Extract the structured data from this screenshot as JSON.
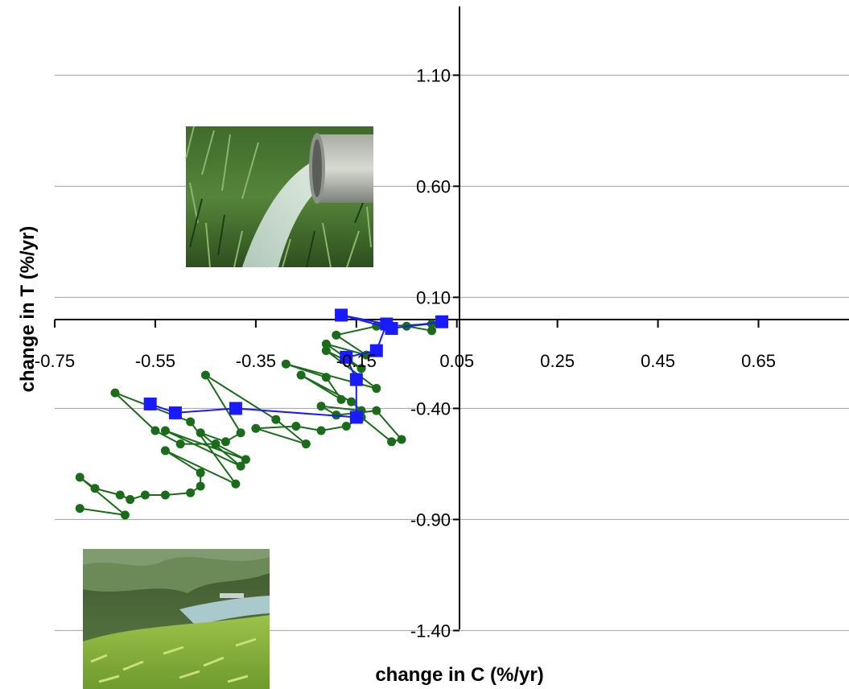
{
  "chart_data": {
    "type": "line",
    "title": "",
    "xlabel": "change in C (%/yr)",
    "ylabel": "change in T (%/yr)",
    "xlim": [
      -0.75,
      0.75
    ],
    "ylim": [
      -1.4,
      1.4
    ],
    "x_ticks": [
      "-0.75",
      "-0.55",
      "-0.35",
      "-0.15",
      "0.05",
      "0.25",
      "0.45",
      "0.65"
    ],
    "y_ticks": [
      "1.10",
      "0.60",
      "0.10",
      "-0.40",
      "-0.90",
      "-1.40"
    ],
    "y_tick_values": [
      1.1,
      0.6,
      0.1,
      -0.4,
      -0.9,
      -1.4
    ],
    "gridlines": "horizontal",
    "series": [
      {
        "color": "#1a6b1a",
        "marker": "circle",
        "points": [
          [
            0.0,
            -0.05
          ],
          [
            -0.05,
            -0.03
          ],
          [
            0.0,
            -0.02
          ],
          [
            -0.09,
            -0.03
          ],
          [
            -0.11,
            -0.03
          ],
          [
            -0.19,
            -0.07
          ],
          [
            -0.13,
            -0.16
          ],
          [
            -0.21,
            -0.11
          ],
          [
            -0.14,
            -0.22
          ],
          [
            -0.21,
            -0.14
          ],
          [
            -0.11,
            -0.31
          ],
          [
            -0.29,
            -0.2
          ],
          [
            -0.21,
            -0.26
          ],
          [
            -0.18,
            -0.36
          ],
          [
            -0.26,
            -0.25
          ],
          [
            -0.16,
            -0.37
          ],
          [
            -0.14,
            -0.41
          ],
          [
            -0.22,
            -0.39
          ],
          [
            -0.19,
            -0.43
          ],
          [
            -0.11,
            -0.41
          ],
          [
            -0.06,
            -0.54
          ],
          [
            -0.08,
            -0.55
          ],
          [
            -0.14,
            -0.44
          ],
          [
            -0.17,
            -0.48
          ],
          [
            -0.22,
            -0.5
          ],
          [
            -0.27,
            -0.48
          ],
          [
            -0.35,
            -0.49
          ],
          [
            -0.25,
            -0.56
          ],
          [
            -0.31,
            -0.45
          ],
          [
            -0.45,
            -0.25
          ],
          [
            -0.38,
            -0.51
          ],
          [
            -0.41,
            -0.55
          ],
          [
            -0.46,
            -0.51
          ],
          [
            -0.38,
            -0.66
          ],
          [
            -0.53,
            -0.5
          ],
          [
            -0.37,
            -0.63
          ],
          [
            -0.43,
            -0.56
          ],
          [
            -0.5,
            -0.56
          ],
          [
            -0.55,
            -0.5
          ],
          [
            -0.63,
            -0.33
          ],
          [
            -0.48,
            -0.46
          ],
          [
            -0.39,
            -0.74
          ],
          [
            -0.53,
            -0.59
          ],
          [
            -0.46,
            -0.69
          ],
          [
            -0.46,
            -0.75
          ],
          [
            -0.48,
            -0.78
          ],
          [
            -0.53,
            -0.79
          ],
          [
            -0.57,
            -0.79
          ],
          [
            -0.6,
            -0.81
          ],
          [
            -0.62,
            -0.79
          ],
          [
            -0.67,
            -0.76
          ],
          [
            -0.7,
            -0.71
          ],
          [
            -0.61,
            -0.88
          ],
          [
            -0.7,
            -0.85
          ]
        ]
      },
      {
        "color": "#1a1aff",
        "marker": "square",
        "points": [
          [
            0.02,
            -0.01
          ],
          [
            -0.08,
            -0.04
          ],
          [
            -0.18,
            0.02
          ],
          [
            -0.09,
            -0.02
          ],
          [
            -0.11,
            -0.14
          ],
          [
            -0.17,
            -0.17
          ],
          [
            -0.15,
            -0.27
          ],
          [
            -0.15,
            -0.44
          ],
          [
            -0.39,
            -0.4
          ],
          [
            -0.51,
            -0.42
          ],
          [
            -0.56,
            -0.38
          ]
        ]
      }
    ]
  },
  "photos": [
    {
      "name": "pipe-discharge-photo",
      "alt": "pipe discharging water onto grass"
    },
    {
      "name": "tea-field-river-photo",
      "alt": "tea field beside a river"
    }
  ]
}
